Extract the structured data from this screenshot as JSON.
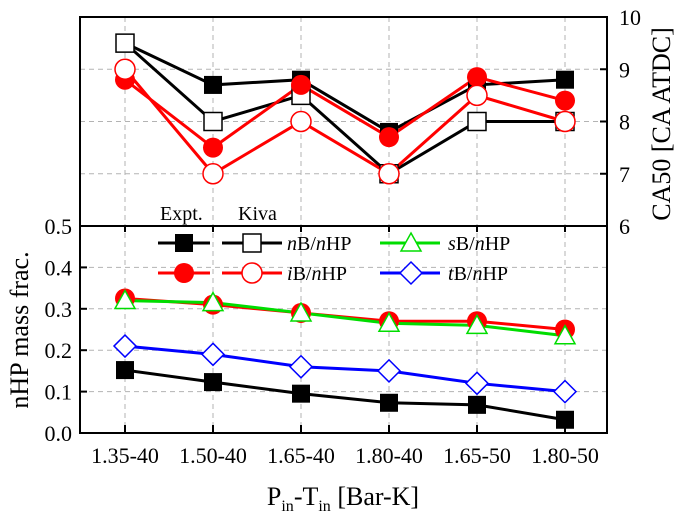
{
  "chart_data": {
    "type": "line",
    "categories": [
      "1.35-40",
      "1.50-40",
      "1.65-40",
      "1.80-40",
      "1.65-50",
      "1.80-50"
    ],
    "xlabel": {
      "main": "P",
      "sub1": "in",
      "mid": "-T",
      "sub2": "in",
      "tail": " [Bar-K]"
    },
    "top_panel": {
      "ylabel": "CA50 [CA ATDC]",
      "ylim": [
        6,
        10
      ],
      "yticks": [
        "6",
        "7",
        "8",
        "9",
        "10"
      ],
      "series": [
        {
          "name": "nB/nHP Expt.",
          "color": "#000000",
          "marker": "square-filled",
          "values": [
            9.5,
            8.7,
            8.8,
            7.8,
            8.7,
            8.8
          ]
        },
        {
          "name": "nB/nHP Kiva",
          "color": "#000000",
          "marker": "square-open",
          "values": [
            9.5,
            8.0,
            8.5,
            7.0,
            8.0,
            8.0
          ]
        },
        {
          "name": "iB/nHP Expt.",
          "color": "#ff0000",
          "marker": "circle-filled",
          "values": [
            8.8,
            7.5,
            8.7,
            7.7,
            8.85,
            8.4
          ]
        },
        {
          "name": "iB/nHP Kiva",
          "color": "#ff0000",
          "marker": "circle-open",
          "values": [
            9.0,
            7.0,
            8.0,
            7.0,
            8.5,
            8.0
          ]
        }
      ]
    },
    "bottom_panel": {
      "ylabel": "nHP mass frac.",
      "ylim": [
        0.0,
        0.5
      ],
      "yticks": [
        "0.0",
        "0.1",
        "0.2",
        "0.3",
        "0.4",
        "0.5"
      ],
      "series": [
        {
          "name": "nB/nHP Expt.",
          "color": "#000000",
          "marker": "square-filled",
          "values": [
            0.152,
            0.123,
            0.095,
            0.073,
            0.068,
            0.032
          ]
        },
        {
          "name": "iB/nHP Expt.",
          "color": "#ff0000",
          "marker": "circle-filled",
          "values": [
            0.325,
            0.31,
            0.29,
            0.27,
            0.27,
            0.25
          ]
        },
        {
          "name": "sB/nHP Kiva",
          "color": "#00dd00",
          "marker": "triangle-open",
          "values": [
            0.32,
            0.315,
            0.29,
            0.265,
            0.26,
            0.235
          ]
        },
        {
          "name": "tB/nHP Kiva",
          "color": "#0000ff",
          "marker": "diamond-open",
          "values": [
            0.21,
            0.19,
            0.16,
            0.15,
            0.12,
            0.1
          ]
        }
      ]
    },
    "legend": {
      "header_expt": "Expt.",
      "header_kiva": "Kiva",
      "entries": [
        {
          "pre": "n",
          "mid": "B/",
          "italic2": "n",
          "post": "HP"
        },
        {
          "pre": "s",
          "mid": "B/",
          "italic2": "n",
          "post": "HP"
        },
        {
          "pre": "i",
          "mid": "B/",
          "italic2": "n",
          "post": "HP"
        },
        {
          "pre": "t",
          "mid": "B/",
          "italic2": "n",
          "post": "HP"
        }
      ]
    }
  }
}
